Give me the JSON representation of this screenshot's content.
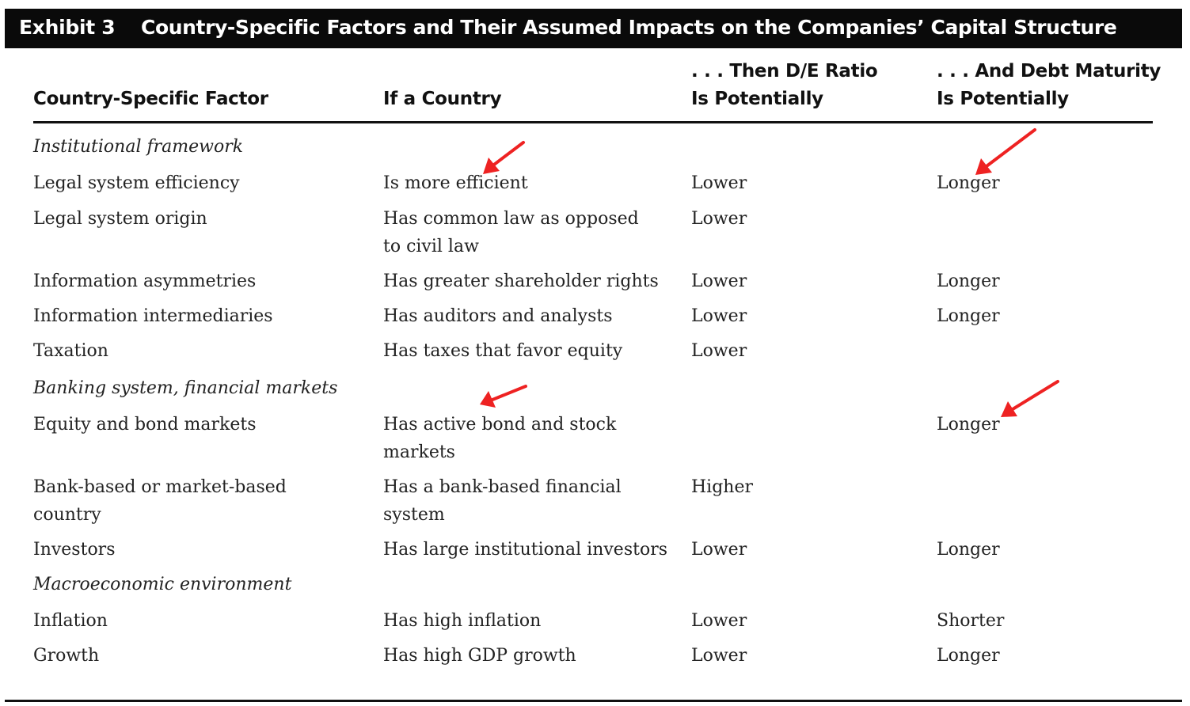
{
  "header": {
    "exhibit": "Exhibit 3",
    "title": "Country-Specific Factors and Their Assumed Impacts on the Companies’ Capital Structure"
  },
  "columns": {
    "factor": "Country-Specific Factor",
    "if_country": "If a Country",
    "de_ratio_line1": ". . . Then D/E Ratio",
    "de_ratio_line2": "Is Potentially",
    "maturity_line1": ". . . And Debt Maturity",
    "maturity_line2": "Is Potentially"
  },
  "sections": {
    "institutional": "Institutional framework",
    "banking": "Banking system, financial markets",
    "macro": "Macroeconomic environment"
  },
  "rows": [
    {
      "factor": "Legal system efficiency",
      "if_country": "Is more efficient",
      "de_ratio": "Lower",
      "maturity": "Longer"
    },
    {
      "factor": "Legal system origin",
      "if_country_l1": "Has common law as opposed",
      "if_country_l2": "to civil law",
      "de_ratio": "Lower",
      "maturity": ""
    },
    {
      "factor": "Information asymmetries",
      "if_country": "Has greater shareholder rights",
      "de_ratio": "Lower",
      "maturity": "Longer"
    },
    {
      "factor": "Information intermediaries",
      "if_country": "Has auditors and analysts",
      "de_ratio": "Lower",
      "maturity": "Longer"
    },
    {
      "factor": "Taxation",
      "if_country": "Has taxes that favor equity",
      "de_ratio": "Lower",
      "maturity": ""
    },
    {
      "factor": "Equity and bond markets",
      "if_country_l1": "Has active bond and stock",
      "if_country_l2": "markets",
      "de_ratio": "",
      "maturity": "Longer"
    },
    {
      "factor_l1": "Bank-based or market-based",
      "factor_l2": "country",
      "if_country_l1": "Has a bank-based financial",
      "if_country_l2": "system",
      "de_ratio": "Higher",
      "maturity": ""
    },
    {
      "factor": "Investors",
      "if_country": "Has large institutional investors",
      "de_ratio": "Lower",
      "maturity": "Longer"
    },
    {
      "factor": "Inflation",
      "if_country": "Has high inflation",
      "de_ratio": "Lower",
      "maturity": "Shorter"
    },
    {
      "factor": "Growth",
      "if_country": "Has high GDP growth",
      "de_ratio": "Lower",
      "maturity": "Longer"
    }
  ],
  "annotation_color": "#ee2222"
}
